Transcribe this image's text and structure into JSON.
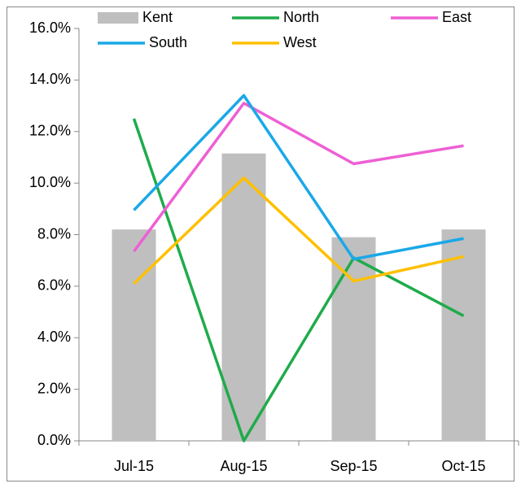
{
  "chart_data": {
    "type": "bar",
    "categories": [
      "Jul-15",
      "Aug-15",
      "Sep-15",
      "Oct-15"
    ],
    "series": [
      {
        "name": "Kent",
        "type": "bar",
        "color": "#bfbfbf",
        "values": [
          8.2,
          11.15,
          7.9,
          8.2
        ]
      },
      {
        "name": "North",
        "type": "line",
        "color": "#1fab4a",
        "values": [
          12.5,
          0,
          7.1,
          4.85
        ]
      },
      {
        "name": "East",
        "type": "line",
        "color": "#ee5fd4",
        "values": [
          7.35,
          13.1,
          10.75,
          11.45
        ]
      },
      {
        "name": "South",
        "type": "line",
        "color": "#1aa8e8",
        "values": [
          8.95,
          13.4,
          7.05,
          7.85
        ]
      },
      {
        "name": "West",
        "type": "line",
        "color": "#ffc000",
        "values": [
          6.1,
          10.2,
          6.2,
          7.15
        ]
      }
    ],
    "ylim": [
      0,
      16
    ],
    "yticks": [
      {
        "value": 0,
        "label": "0.0%"
      },
      {
        "value": 2,
        "label": "2.0%"
      },
      {
        "value": 4,
        "label": "4.0%"
      },
      {
        "value": 6,
        "label": "6.0%"
      },
      {
        "value": 8,
        "label": "8.0%"
      },
      {
        "value": 10,
        "label": "10.0%"
      },
      {
        "value": 12,
        "label": "12.0%"
      },
      {
        "value": 14,
        "label": "14.0%"
      },
      {
        "value": 16,
        "label": "16.0%"
      }
    ],
    "grid": false,
    "legend": "top"
  }
}
